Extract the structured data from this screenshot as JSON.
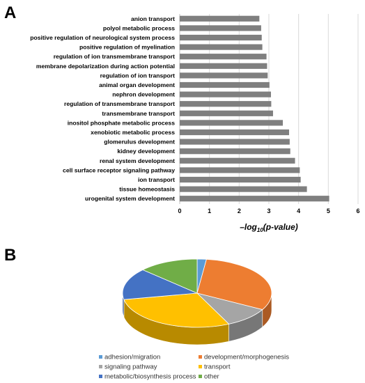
{
  "panels": {
    "a_label": "A",
    "b_label": "B"
  },
  "chart_data": [
    {
      "type": "bar",
      "orientation": "horizontal",
      "categories": [
        "anion transport",
        "polyol metabolic process",
        "positive regulation of neurological system process",
        "positive regulation of myelination",
        "regulation of ion transmembrane transport",
        "membrane depolarization during action potential",
        "regulation of ion transport",
        "animal organ development",
        "nephron development",
        "regulation of transmembrane transport",
        "transmembrane transport",
        "inositol phosphate metabolic process",
        "xenobiotic metabolic process",
        "glomerulus development",
        "kidney development",
        "renal system development",
        "cell surface receptor signaling pathway",
        "ion transport",
        "tissue homeostasis",
        "urogenital system development"
      ],
      "values": [
        2.68,
        2.74,
        2.76,
        2.78,
        2.92,
        2.94,
        2.96,
        3.02,
        3.07,
        3.08,
        3.14,
        3.47,
        3.68,
        3.7,
        3.72,
        3.88,
        4.04,
        4.07,
        4.28,
        5.03
      ],
      "xlabel_prefix": "–log",
      "xlabel_sub": "10",
      "xlabel_suffix": "(p-value)",
      "xlim": [
        0,
        6
      ],
      "xticks": [
        "0",
        "1",
        "2",
        "3",
        "4",
        "5",
        "6"
      ],
      "grid": true,
      "bar_color": "#7f7f7f"
    },
    {
      "type": "pie",
      "style": "3d",
      "slices": [
        {
          "label": "adhesion/migration",
          "value": 2,
          "color": "#5b9bd5"
        },
        {
          "label": "development/morphogenesis",
          "value": 31,
          "color": "#ed7d31"
        },
        {
          "label": "signaling pathway",
          "value": 10,
          "color": "#a5a5a5"
        },
        {
          "label": "transport",
          "value": 29,
          "color": "#ffc000"
        },
        {
          "label": "metabolic/biosynthesis process",
          "value": 15,
          "color": "#4472c4"
        },
        {
          "label": "other",
          "value": 13,
          "color": "#70ad47"
        }
      ],
      "legend_position": "bottom"
    }
  ]
}
